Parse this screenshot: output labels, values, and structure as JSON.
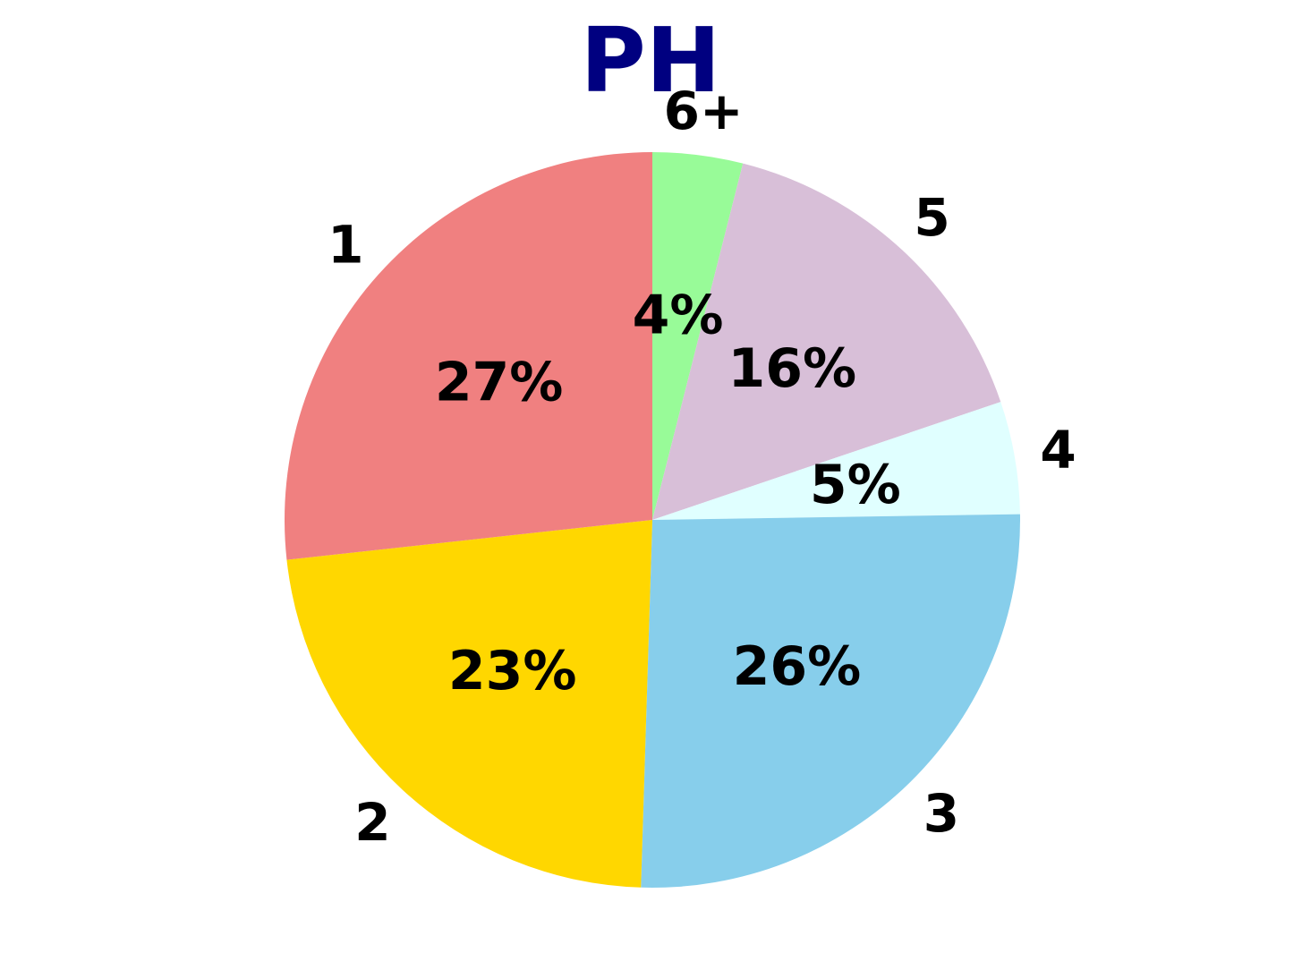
{
  "chart_data": {
    "type": "pie",
    "title": "PH",
    "title_color": "#000080",
    "start": "12 o'clock",
    "direction": "clockwise",
    "slices": [
      {
        "category": "6+",
        "value": 4,
        "label": "4%",
        "color": "#98FB98"
      },
      {
        "category": "5",
        "value": 16,
        "label": "16%",
        "color": "#D8BFD8"
      },
      {
        "category": "4",
        "value": 5,
        "label": "5%",
        "color": "#E0FFFF"
      },
      {
        "category": "3",
        "value": 26,
        "label": "26%",
        "color": "#87CEEB"
      },
      {
        "category": "2",
        "value": 23,
        "label": "23%",
        "color": "#FFD700"
      },
      {
        "category": "1",
        "value": 27,
        "label": "27%",
        "color": "#F08080"
      }
    ]
  }
}
